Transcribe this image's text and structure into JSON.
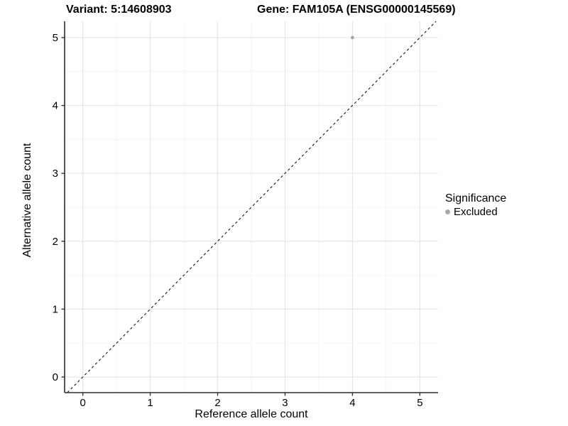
{
  "titles": {
    "left": "Variant: 5:14608903",
    "right": "Gene: FAM105A (ENSG00000145569)"
  },
  "legend": {
    "title": "Significance",
    "items": [
      {
        "label": "Excluded",
        "color": "#a8a8a8"
      }
    ]
  },
  "chart_data": {
    "type": "scatter",
    "xlabel": "Reference allele count",
    "ylabel": "Alternative allele count",
    "x_ticks": [
      0,
      1,
      2,
      3,
      4,
      5
    ],
    "y_ticks": [
      0,
      1,
      2,
      3,
      4,
      5
    ],
    "xlim": [
      -0.27,
      5.27
    ],
    "ylim": [
      -0.23,
      5.24
    ],
    "grid": "major-and-minor",
    "legend_position": "right",
    "points": [
      {
        "x": 4,
        "y": 5,
        "series": "Excluded",
        "color": "#a8a8a8"
      }
    ],
    "reference_line": {
      "kind": "identity",
      "style": "dashed",
      "color": "#141414"
    },
    "colors": {
      "panel_background": "#ffffff",
      "grid_major": "#e6e6e6",
      "grid_minor": "#f3f3f3",
      "axis_line": "#2b2b2b",
      "tick_mark": "#333333",
      "tick_label": "#000000"
    }
  }
}
